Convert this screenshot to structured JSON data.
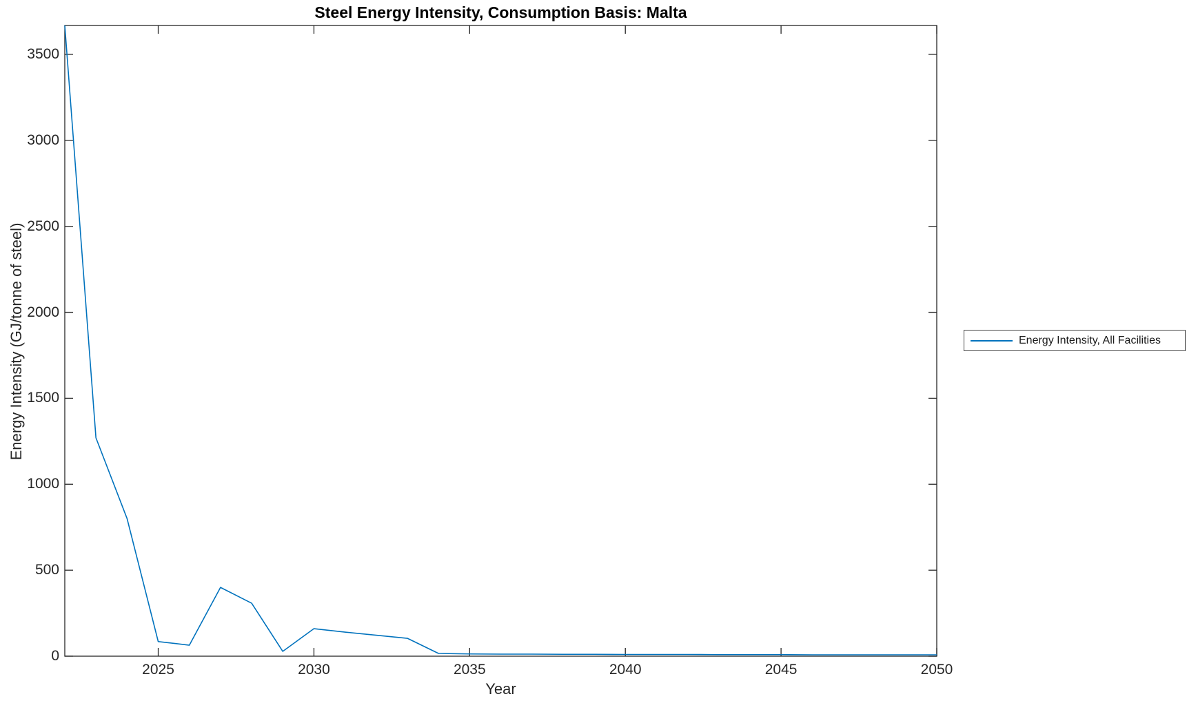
{
  "colors": {
    "line": "#0072BD",
    "axis": "#262626",
    "background": "#ffffff"
  },
  "chart_data": {
    "type": "line",
    "title": "Steel Energy Intensity, Consumption Basis: Malta",
    "xlabel": "Year",
    "ylabel": "Energy Intensity (GJ/tonne of steel)",
    "xlim": [
      2022,
      2050
    ],
    "ylim": [
      0,
      3668
    ],
    "xticks": [
      2025,
      2030,
      2035,
      2040,
      2045,
      2050
    ],
    "yticks": [
      0,
      500,
      1000,
      1500,
      2000,
      2500,
      3000,
      3500
    ],
    "grid": false,
    "legend": {
      "position": "right-outside",
      "entries": [
        {
          "label": "Energy Intensity, All Facilities",
          "color": "#0072BD"
        }
      ]
    },
    "series": [
      {
        "name": "Energy Intensity, All Facilities",
        "color": "#0072BD",
        "x": [
          2022,
          2023,
          2024,
          2025,
          2026,
          2027,
          2028,
          2029,
          2030,
          2031,
          2032,
          2033,
          2034,
          2035,
          2036,
          2037,
          2038,
          2039,
          2040,
          2041,
          2042,
          2043,
          2044,
          2045,
          2046,
          2047,
          2048,
          2049,
          2050
        ],
        "y": [
          3668,
          1270,
          800,
          85,
          64,
          400,
          308,
          28,
          160,
          140,
          122,
          104,
          16,
          13,
          12,
          12,
          11,
          11,
          10,
          10,
          10,
          9,
          9,
          9,
          8,
          8,
          8,
          8,
          8
        ]
      }
    ]
  }
}
